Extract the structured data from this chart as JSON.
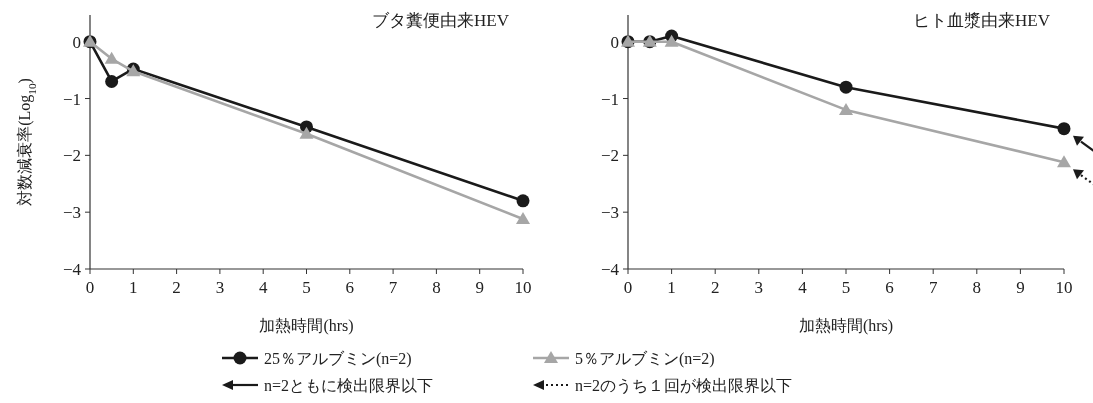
{
  "chart_data": [
    {
      "type": "line",
      "title": "ブタ糞便由来HEV",
      "xlabel": "加熱時間(hrs)",
      "ylabel": "対数減衰率(Log$_{10}$)",
      "x": [
        0,
        0.5,
        1,
        5,
        10
      ],
      "xlim": [
        0,
        10
      ],
      "xticks": [
        0,
        1,
        2,
        3,
        4,
        5,
        6,
        7,
        8,
        9,
        10
      ],
      "ylim": [
        -4,
        0.47
      ],
      "yticks": [
        {
          "value": 0,
          "label": "0"
        },
        {
          "value": -1,
          "label": "−1"
        },
        {
          "value": -2,
          "label": "−2"
        },
        {
          "value": -3,
          "label": "−3"
        },
        {
          "value": -4,
          "label": "−4"
        }
      ],
      "grid": false,
      "legend": "bottom",
      "series": [
        {
          "name": "25％アルブミン(n=2)",
          "color": "#1a1a1a",
          "marker": "circle",
          "values": [
            0,
            -0.7,
            -0.48,
            -1.5,
            -2.8
          ]
        },
        {
          "name": "5％アルブミン(n=2)",
          "color": "#a6a6a6",
          "marker": "triangle",
          "values": [
            0,
            -0.3,
            -0.52,
            -1.62,
            -3.12
          ]
        }
      ]
    },
    {
      "type": "line",
      "title": "ヒト血漿由来HEV",
      "xlabel": "加熱時間(hrs)",
      "x": [
        0,
        0.5,
        1,
        5,
        10
      ],
      "xlim": [
        0,
        10
      ],
      "xticks": [
        0,
        1,
        2,
        3,
        4,
        5,
        6,
        7,
        8,
        9,
        10
      ],
      "ylim": [
        -4,
        0.47
      ],
      "yticks": [
        {
          "value": 0,
          "label": "0"
        },
        {
          "value": -1,
          "label": "−1"
        },
        {
          "value": -2,
          "label": "−2"
        },
        {
          "value": -3,
          "label": "−3"
        },
        {
          "value": -4,
          "label": "−4"
        }
      ],
      "grid": false,
      "legend": false,
      "series": [
        {
          "color": "#1a1a1a",
          "marker": "circle",
          "values": [
            0,
            0,
            0.1,
            -0.8,
            -1.53
          ]
        },
        {
          "color": "#a6a6a6",
          "marker": "triangle",
          "values": [
            0,
            0,
            0,
            -1.2,
            -2.12
          ]
        }
      ],
      "annotations": [
        "n=2ともに検出限界以下",
        "n=2のうち１回が検出限界以下"
      ]
    }
  ]
}
